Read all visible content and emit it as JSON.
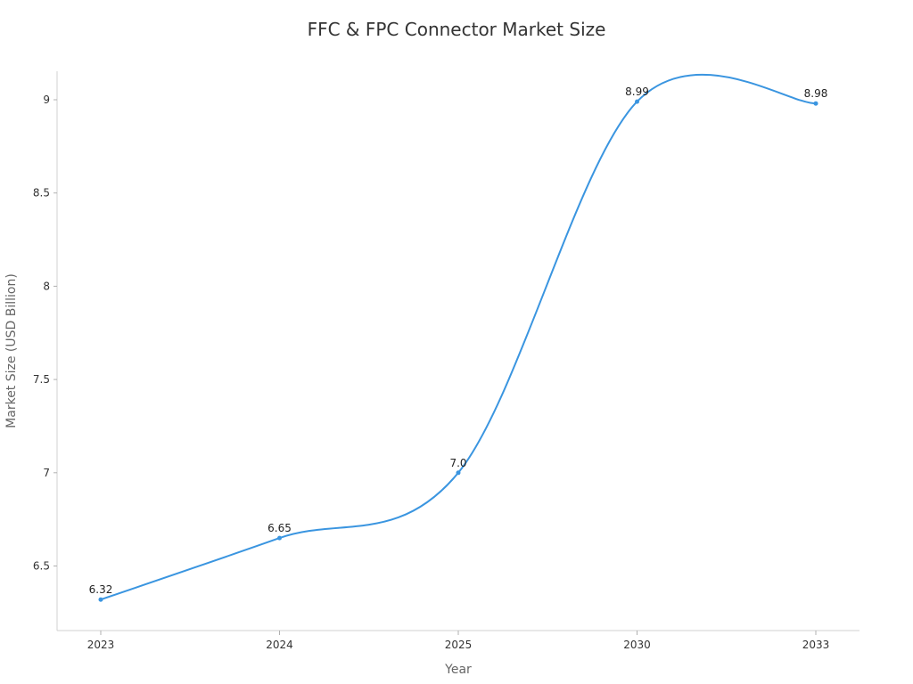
{
  "chart_data": {
    "type": "line",
    "title": "FFC & FPC Connector Market Size",
    "xlabel": "Year",
    "ylabel": "Market Size (USD Billion)",
    "categories": [
      "2023",
      "2024",
      "2025",
      "2030",
      "2033"
    ],
    "series": [
      {
        "values": [
          6.32,
          6.65,
          7.0,
          8.99,
          8.98
        ],
        "labels": [
          "6.32",
          "6.65",
          "7.0",
          "8.99",
          "8.98"
        ],
        "color": "#3a95e0"
      }
    ],
    "ylim": [
      6.32,
      9.16
    ],
    "yticks": [
      6.5,
      7,
      7.5,
      8,
      8.5,
      9
    ],
    "ytick_labels": [
      "6.5",
      "7",
      "7.5",
      "8",
      "8.5",
      "9"
    ],
    "smooth": true,
    "grid": false,
    "legend": "none"
  }
}
